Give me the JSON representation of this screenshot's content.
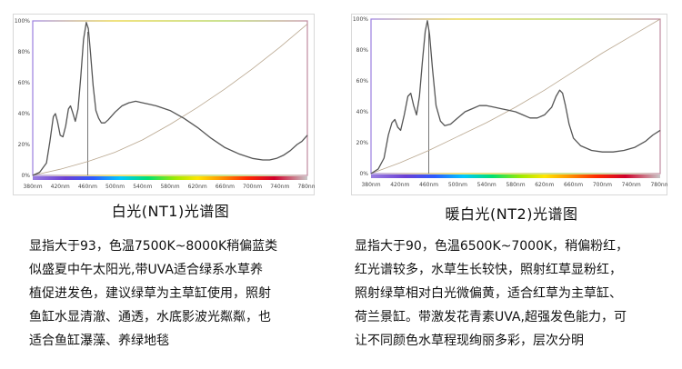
{
  "chart_data": [
    {
      "type": "line",
      "title": "白光(NT1)光谱图",
      "x_ticks": [
        "380nm",
        "420nm",
        "460nm",
        "500nm",
        "540nm",
        "580nm",
        "620nm",
        "660nm",
        "700nm",
        "740nm",
        "780nm"
      ],
      "y_ticks": [
        "0%",
        "20%",
        "40%",
        "60%",
        "80%",
        "100%"
      ],
      "xlim": [
        380,
        780
      ],
      "ylim": [
        0,
        100
      ],
      "peak_marker_x": 460,
      "series": [
        {
          "values": [
            [
              380,
              0
            ],
            [
              390,
              2
            ],
            [
              400,
              8
            ],
            [
              405,
              22
            ],
            [
              410,
              38
            ],
            [
              413,
              40
            ],
            [
              416,
              35
            ],
            [
              420,
              26
            ],
            [
              424,
              25
            ],
            [
              428,
              32
            ],
            [
              432,
              43
            ],
            [
              435,
              45
            ],
            [
              438,
              41
            ],
            [
              442,
              35
            ],
            [
              446,
              43
            ],
            [
              450,
              64
            ],
            [
              454,
              88
            ],
            [
              458,
              99
            ],
            [
              461,
              95
            ],
            [
              464,
              80
            ],
            [
              468,
              58
            ],
            [
              472,
              42
            ],
            [
              476,
              37
            ],
            [
              480,
              34
            ],
            [
              485,
              34
            ],
            [
              490,
              36
            ],
            [
              500,
              41
            ],
            [
              510,
              45
            ],
            [
              520,
              47
            ],
            [
              530,
              48
            ],
            [
              540,
              47
            ],
            [
              550,
              46
            ],
            [
              560,
              45
            ],
            [
              580,
              42
            ],
            [
              600,
              37
            ],
            [
              620,
              31
            ],
            [
              640,
              24
            ],
            [
              660,
              18
            ],
            [
              680,
              14
            ],
            [
              700,
              11
            ],
            [
              715,
              10
            ],
            [
              725,
              10
            ],
            [
              735,
              11
            ],
            [
              745,
              13
            ],
            [
              755,
              16
            ],
            [
              765,
              20
            ],
            [
              772,
              22
            ],
            [
              780,
              26
            ]
          ]
        },
        {
          "values": [
            [
              380,
              0
            ],
            [
              420,
              4
            ],
            [
              460,
              9
            ],
            [
              500,
              15
            ],
            [
              540,
              23
            ],
            [
              580,
              33
            ],
            [
              620,
              44
            ],
            [
              660,
              56
            ],
            [
              700,
              69
            ],
            [
              740,
              83
            ],
            [
              780,
              98
            ]
          ]
        }
      ]
    },
    {
      "type": "line",
      "title": "暖白光(NT2)光谱图",
      "x_ticks": [
        "380nm",
        "420nm",
        "460nm",
        "500nm",
        "540nm",
        "580nm",
        "620nm",
        "660nm",
        "700nm",
        "740nm",
        "780nm"
      ],
      "y_ticks": [
        "0%",
        "20%",
        "40%",
        "60%",
        "80%",
        "100%"
      ],
      "xlim": [
        380,
        780
      ],
      "ylim": [
        0,
        100
      ],
      "peak_marker_x": 460,
      "series": [
        {
          "values": [
            [
              380,
              0
            ],
            [
              390,
              3
            ],
            [
              398,
              10
            ],
            [
              404,
              25
            ],
            [
              409,
              33
            ],
            [
              413,
              35
            ],
            [
              417,
              30
            ],
            [
              421,
              28
            ],
            [
              426,
              38
            ],
            [
              431,
              50
            ],
            [
              435,
              52
            ],
            [
              439,
              44
            ],
            [
              443,
              38
            ],
            [
              447,
              50
            ],
            [
              451,
              72
            ],
            [
              455,
              92
            ],
            [
              458,
              99
            ],
            [
              461,
              90
            ],
            [
              465,
              68
            ],
            [
              470,
              44
            ],
            [
              476,
              34
            ],
            [
              482,
              31
            ],
            [
              490,
              32
            ],
            [
              500,
              36
            ],
            [
              510,
              40
            ],
            [
              520,
              42
            ],
            [
              530,
              44
            ],
            [
              540,
              44
            ],
            [
              550,
              43
            ],
            [
              560,
              42
            ],
            [
              570,
              41
            ],
            [
              580,
              40
            ],
            [
              590,
              38
            ],
            [
              600,
              36
            ],
            [
              610,
              36
            ],
            [
              620,
              38
            ],
            [
              630,
              43
            ],
            [
              636,
              50
            ],
            [
              641,
              54
            ],
            [
              645,
              52
            ],
            [
              649,
              44
            ],
            [
              654,
              32
            ],
            [
              660,
              23
            ],
            [
              670,
              18
            ],
            [
              685,
              15
            ],
            [
              700,
              14
            ],
            [
              715,
              14
            ],
            [
              730,
              15
            ],
            [
              745,
              17
            ],
            [
              760,
              21
            ],
            [
              770,
              25
            ],
            [
              780,
              28
            ]
          ]
        },
        {
          "values": [
            [
              380,
              0
            ],
            [
              420,
              7
            ],
            [
              460,
              15
            ],
            [
              500,
              24
            ],
            [
              540,
              33
            ],
            [
              580,
              43
            ],
            [
              620,
              54
            ],
            [
              660,
              66
            ],
            [
              700,
              78
            ],
            [
              740,
              89
            ],
            [
              780,
              100
            ]
          ]
        }
      ]
    }
  ],
  "captions": [
    "白光(NT1)光谱图",
    "暖白光(NT2)光谱图"
  ],
  "descriptions": [
    [
      "显指大于93，色温7500K~8000K稍偏蓝类",
      "似盛夏中午太阳光,带UVA适合绿系水草养",
      "植促进发色，建议绿草为主草缸使用，照射",
      "鱼缸水显清澈、通透，水底影波光粼粼，也",
      "适合鱼缸瀑藻、养绿地毯"
    ],
    [
      "显指大于90，色温6500K~7000K，稍偏粉红，",
      "红光谱较多，水草生长较快，照射红草显粉红，",
      "照射绿草相对白光微偏黄，适合红草为主草缸、",
      "荷兰景缸。带激发花青素UVA,超强发色能力，可",
      "让不同颜色水草程现绚丽多彩，层次分明"
    ]
  ]
}
